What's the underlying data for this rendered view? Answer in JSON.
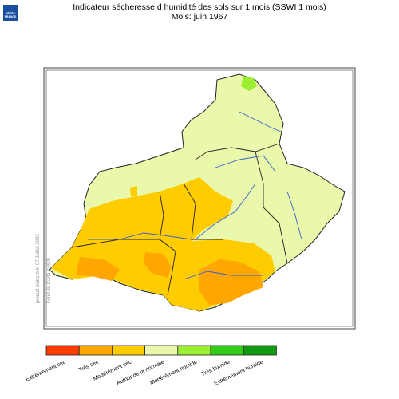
{
  "header": {
    "title": "Indicateur sécheresse d humidité des sols sur 1 mois (SSWI 1 mois)",
    "subtitle": "Mois: juin 1967"
  },
  "logo": {
    "lines": [
      "MÉTÉO",
      "FRANCE"
    ]
  },
  "credits": {
    "produced": "produit élaboré le 07 Juillet 2022",
    "basemap": "Fond de Carte © IGN"
  },
  "legend": {
    "items": [
      {
        "label": "Extrêmement sec",
        "color": "#ff3c00"
      },
      {
        "label": "Très sec",
        "color": "#ffa600"
      },
      {
        "label": "Modérément sec",
        "color": "#ffcc00"
      },
      {
        "label": "Autour de la normale",
        "color": "#eaf8ab"
      },
      {
        "label": "Modérément humide",
        "color": "#9cee33"
      },
      {
        "label": "Très humide",
        "color": "#33cc1a"
      },
      {
        "label": "Extrêmement humide",
        "color": "#119a11"
      }
    ]
  }
}
